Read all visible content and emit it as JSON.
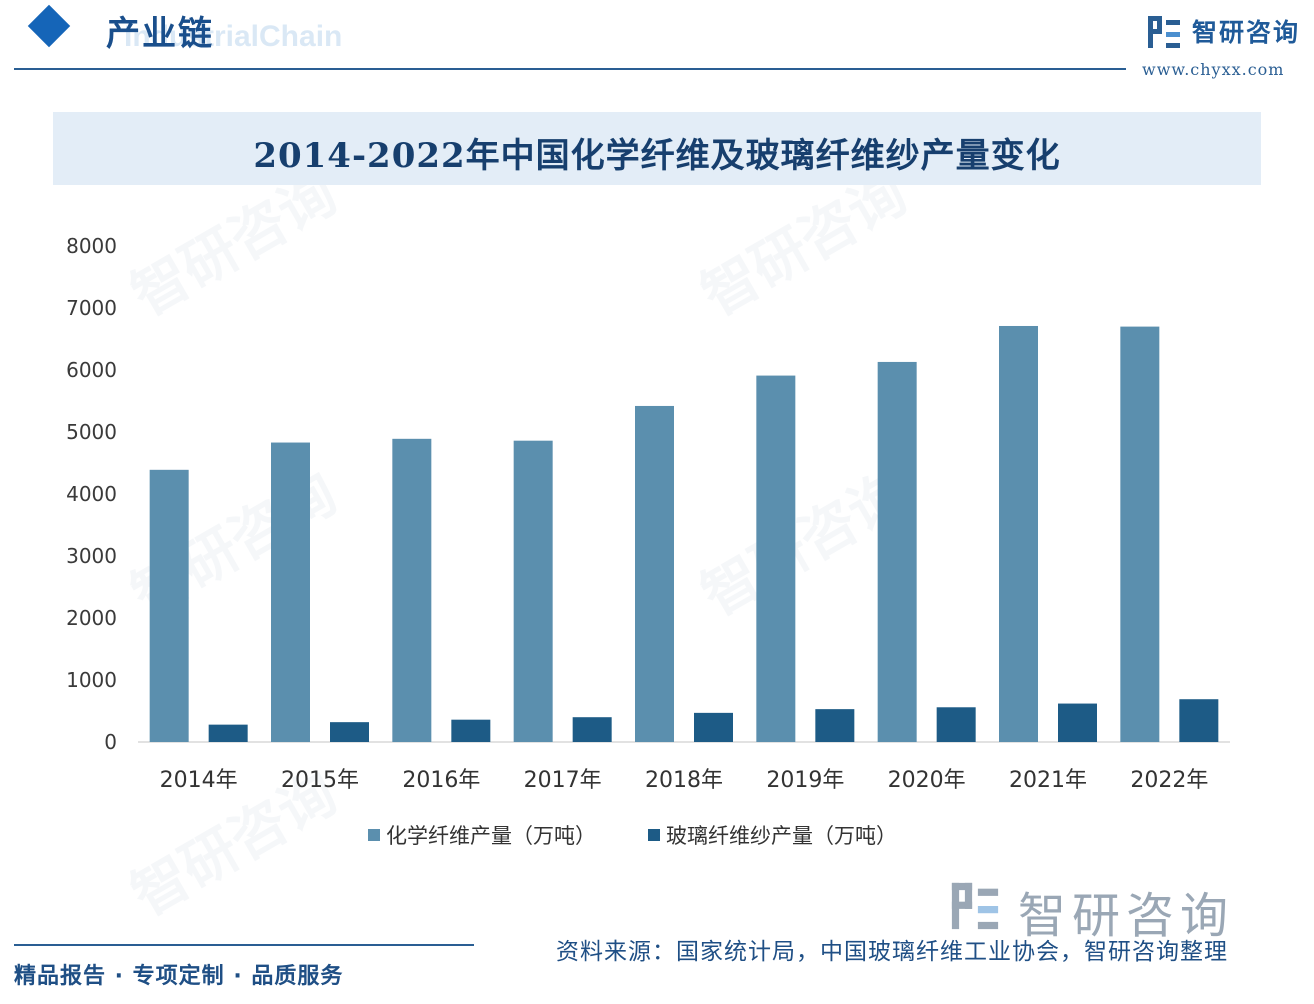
{
  "header": {
    "section_title": "产业链",
    "section_title_en": "IndustrialChain",
    "brand_name": "智研咨询",
    "brand_url": "www.chyxx.com"
  },
  "colors": {
    "series1": "#5b8fae",
    "series2": "#1d5b86",
    "accent": "#1565b8"
  },
  "chart_data": {
    "type": "bar",
    "title": "2014-2022年中国化学纤维及玻璃纤维纱产量变化",
    "categories": [
      "2014年",
      "2015年",
      "2016年",
      "2017年",
      "2018年",
      "2019年",
      "2020年",
      "2021年",
      "2022年"
    ],
    "series": [
      {
        "name": "化学纤维产量（万吨）",
        "values": [
          4390,
          4830,
          4890,
          4860,
          5420,
          5910,
          6130,
          6710,
          6700
        ]
      },
      {
        "name": "玻璃纤维纱产量（万吨）",
        "values": [
          280,
          320,
          360,
          400,
          470,
          530,
          560,
          620,
          690
        ]
      }
    ],
    "yticks": [
      0,
      1000,
      2000,
      3000,
      4000,
      5000,
      6000,
      7000,
      8000
    ],
    "ylim": [
      0,
      8000
    ],
    "grid": false,
    "legend": "bottom"
  },
  "footer": {
    "left": "精品报告 · 专项定制 · 品质服务",
    "source": "资料来源：国家统计局，中国玻璃纤维工业协会，智研咨询整理",
    "brand": "智研咨询"
  }
}
